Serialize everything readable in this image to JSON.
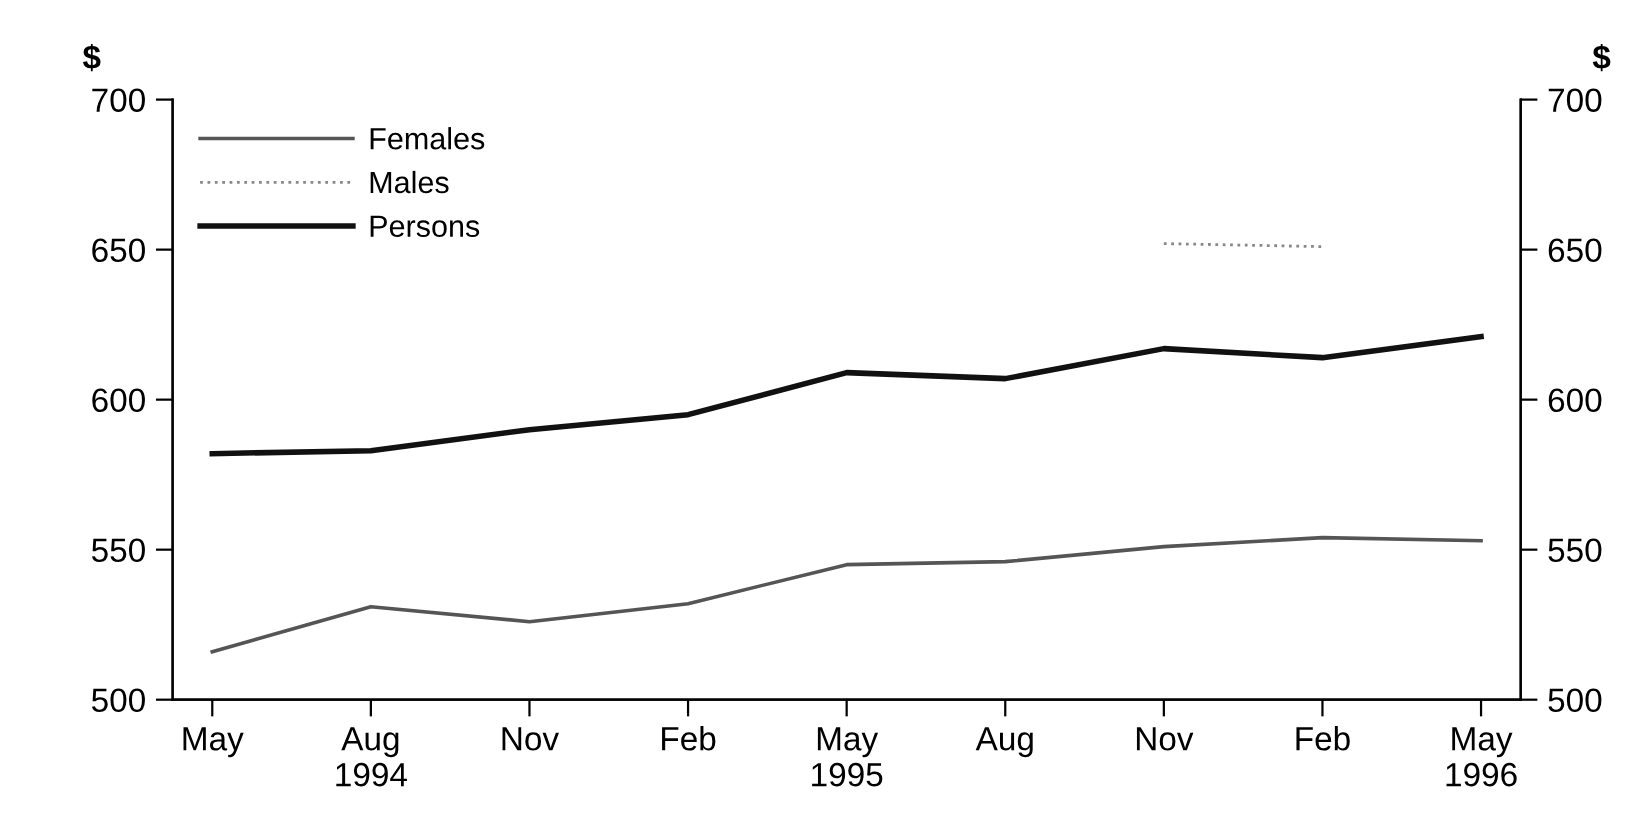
{
  "chart_data": {
    "type": "line",
    "ylabel": "$",
    "y2label": "$",
    "categories": [
      "May",
      "Aug\n1994",
      "Nov",
      "Feb",
      "May\n1995",
      "Aug",
      "Nov",
      "Feb",
      "May\n1996"
    ],
    "series": [
      {
        "name": "Females",
        "color": "#555555",
        "line_style": "solid",
        "values": [
          516,
          531,
          526,
          532,
          545,
          546,
          551,
          554,
          553
        ]
      },
      {
        "name": "Males",
        "color": "#888888",
        "line_style": "dotted",
        "values": [
          null,
          null,
          null,
          null,
          null,
          null,
          652,
          651,
          null
        ]
      },
      {
        "name": "Persons",
        "color": "#111111",
        "line_style": "solid",
        "values": [
          582,
          583,
          590,
          595,
          609,
          607,
          617,
          614,
          621
        ]
      }
    ],
    "ylim": [
      500,
      700
    ],
    "yticks": [
      500,
      550,
      600,
      650,
      700
    ],
    "y2lim": [
      500,
      700
    ],
    "y2ticks": [
      500,
      550,
      600,
      650,
      700
    ],
    "grid": false,
    "legend": "top left",
    "marker": "none"
  }
}
